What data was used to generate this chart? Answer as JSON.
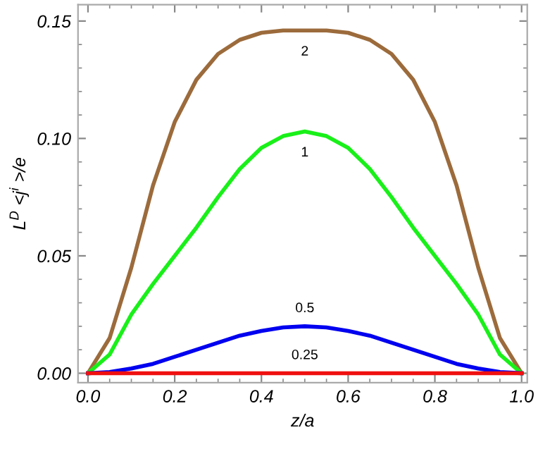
{
  "chart_data": {
    "type": "line",
    "xlabel": "z/a",
    "ylabel": "L$^{D}$ <j$^{i}$ >/e",
    "xlim": [
      -0.023,
      1.013
    ],
    "ylim": [
      -0.004,
      0.157
    ],
    "xticks": [
      {
        "value": 0,
        "label": "0.0"
      },
      0.2,
      0.4,
      0.6,
      0.8,
      {
        "value": 1,
        "label": "1.0"
      }
    ],
    "yticks": [
      {
        "value": 0,
        "label": "0.00"
      },
      0.05,
      {
        "value": 0.1,
        "label": "0.10"
      },
      0.15
    ],
    "grid": false,
    "legend": false,
    "marker": "none",
    "line_style": "solid",
    "x": [
      0,
      0.05,
      0.1,
      0.15,
      0.2,
      0.25,
      0.3,
      0.35,
      0.4,
      0.45,
      0.5,
      0.55,
      0.6,
      0.65,
      0.7,
      0.75,
      0.8,
      0.85,
      0.9,
      0.95,
      1
    ],
    "series": [
      {
        "name": "2",
        "color": "#9c6b3c",
        "values": [
          0,
          0.015,
          0.045,
          0.08,
          0.107,
          0.125,
          0.136,
          0.142,
          0.145,
          0.146,
          0.146,
          0.146,
          0.145,
          0.142,
          0.136,
          0.125,
          0.107,
          0.08,
          0.045,
          0.015,
          0
        ]
      },
      {
        "name": "1",
        "color": "#19f019",
        "values": [
          0,
          0.008,
          0.025,
          0.038,
          0.05,
          0.062,
          0.075,
          0.087,
          0.096,
          0.101,
          0.103,
          0.101,
          0.096,
          0.087,
          0.075,
          0.062,
          0.05,
          0.038,
          0.025,
          0.008,
          0
        ]
      },
      {
        "name": "0.5",
        "color": "#0000f0",
        "values": [
          0,
          0.0005,
          0.002,
          0.004,
          0.007,
          0.01,
          0.013,
          0.016,
          0.018,
          0.0195,
          0.02,
          0.0195,
          0.018,
          0.016,
          0.013,
          0.01,
          0.007,
          0.004,
          0.002,
          0.0005,
          0
        ]
      },
      {
        "name": "0.25",
        "color": "#f01010",
        "values": [
          0,
          0,
          0,
          0,
          0,
          0,
          0,
          0,
          0,
          0,
          0,
          0,
          0,
          0,
          0,
          0,
          0,
          0,
          0,
          0,
          0
        ]
      }
    ]
  }
}
